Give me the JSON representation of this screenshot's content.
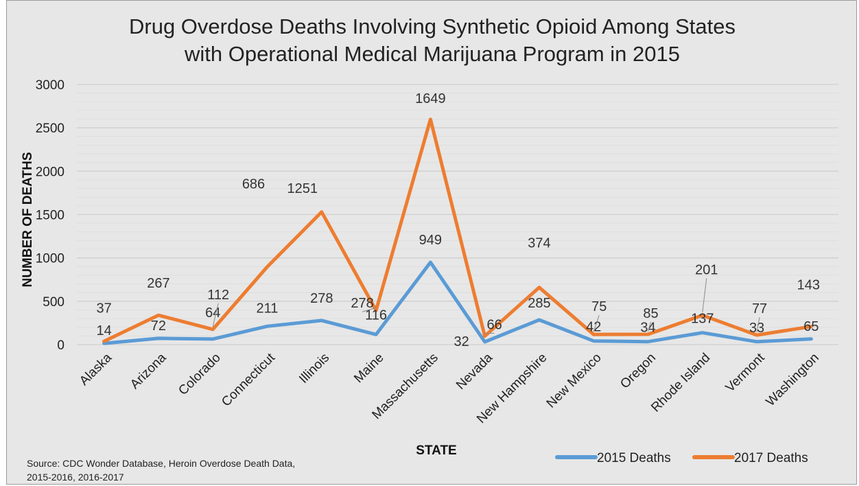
{
  "chart_data": {
    "type": "line",
    "title_line1": "Drug Overdose Deaths Involving Synthetic Opioid Among States",
    "title_line2": "with Operational Medical Marijuana Program in 2015",
    "xlabel": "STATE",
    "ylabel": "NUMBER OF DEATHS",
    "ylim": [
      0,
      3000
    ],
    "yticks": [
      "0",
      "500",
      "1000",
      "1500",
      "2000",
      "2500",
      "3000"
    ],
    "grid": true,
    "legend_position": "bottom-right",
    "categories": [
      "Alaska",
      "Arizona",
      "Colorado",
      "Connecticut",
      "Illinois",
      "Maine",
      "Massachusetts",
      "Nevada",
      "New Hampshire",
      "New Mexico",
      "Oregon",
      "Rhode Island",
      "Vermont",
      "Washington"
    ],
    "series": [
      {
        "name": "2015 Deaths",
        "color": "#5b9bd5",
        "values": [
          14,
          72,
          64,
          211,
          278,
          116,
          949,
          32,
          285,
          42,
          34,
          137,
          33,
          65
        ],
        "labels": [
          "14",
          "72",
          "64",
          "211",
          "278",
          "116",
          "949",
          "32",
          "285",
          "42",
          "34",
          "137",
          "33",
          "65"
        ]
      },
      {
        "name": "2017 Deaths",
        "color": "#ed7d31",
        "values": [
          37,
          339,
          176,
          897,
          1529,
          394,
          2598,
          98,
          659,
          117,
          119,
          338,
          110,
          208
        ],
        "labels": [
          "37",
          "267",
          "112",
          "686",
          "1251",
          "278",
          "1649",
          "66",
          "374",
          "75",
          "85",
          "201",
          "77",
          "143"
        ]
      }
    ]
  },
  "source_text": "Source: CDC Wonder Database, Heroin Overdose Death Data, 2015-2016, 2016-2017",
  "top_cut_text": "Drug Overdose Deaths"
}
